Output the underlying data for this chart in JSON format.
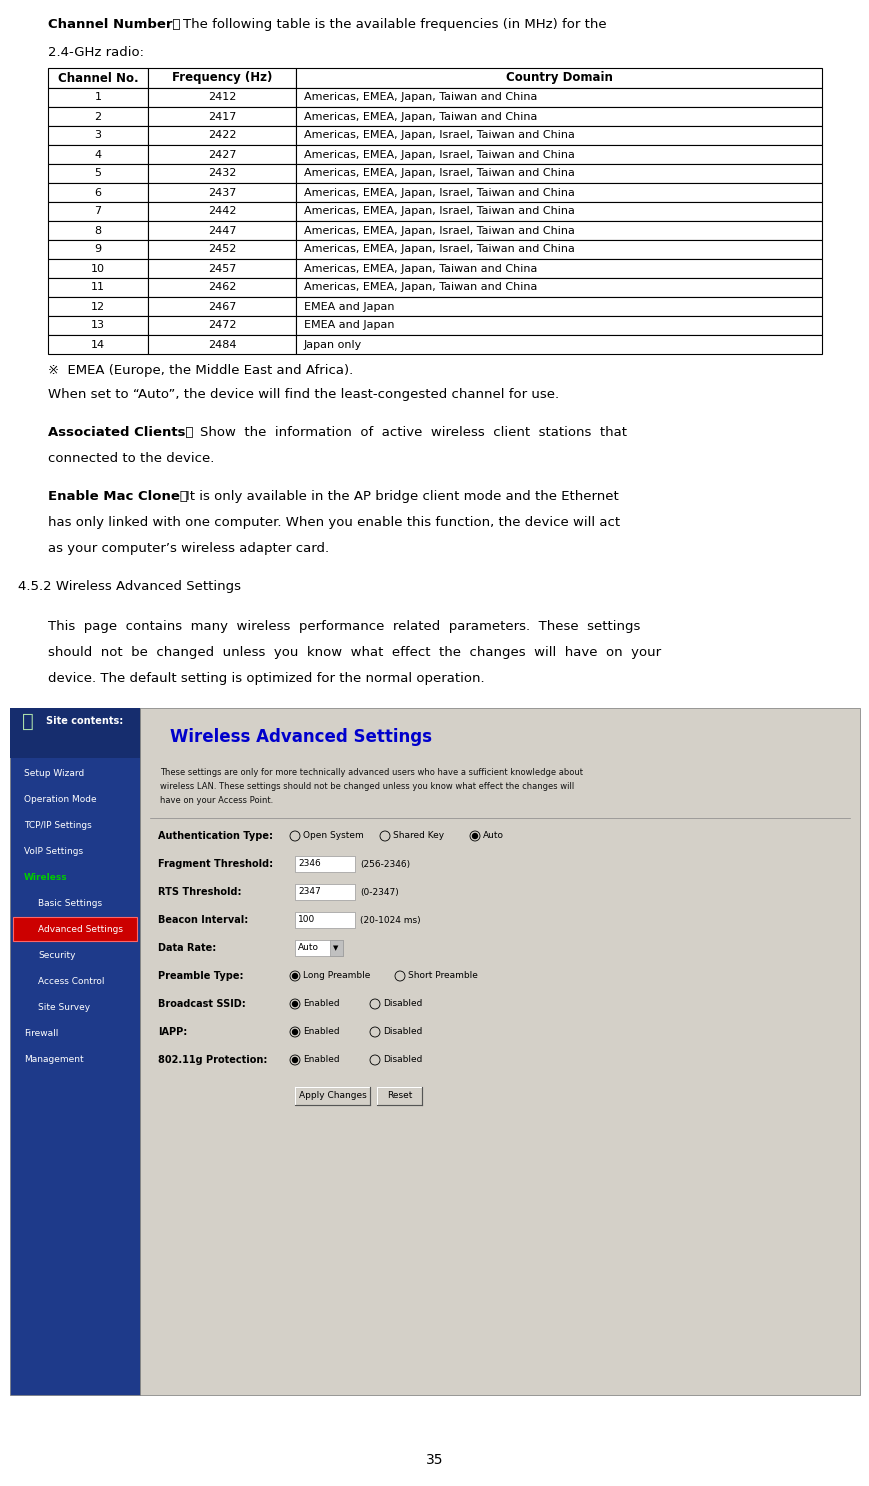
{
  "table_headers": [
    "Channel No.",
    "Frequency (Hz)",
    "Country Domain"
  ],
  "table_rows": [
    [
      "1",
      "2412",
      "Americas, EMEA, Japan, Taiwan and China"
    ],
    [
      "2",
      "2417",
      "Americas, EMEA, Japan, Taiwan and China"
    ],
    [
      "3",
      "2422",
      "Americas, EMEA, Japan, Israel, Taiwan and China"
    ],
    [
      "4",
      "2427",
      "Americas, EMEA, Japan, Israel, Taiwan and China"
    ],
    [
      "5",
      "2432",
      "Americas, EMEA, Japan, Israel, Taiwan and China"
    ],
    [
      "6",
      "2437",
      "Americas, EMEA, Japan, Israel, Taiwan and China"
    ],
    [
      "7",
      "2442",
      "Americas, EMEA, Japan, Israel, Taiwan and China"
    ],
    [
      "8",
      "2447",
      "Americas, EMEA, Japan, Israel, Taiwan and China"
    ],
    [
      "9",
      "2452",
      "Americas, EMEA, Japan, Israel, Taiwan and China"
    ],
    [
      "10",
      "2457",
      "Americas, EMEA, Japan, Taiwan and China"
    ],
    [
      "11",
      "2462",
      "Americas, EMEA, Japan, Taiwan and China"
    ],
    [
      "12",
      "2467",
      "EMEA and Japan"
    ],
    [
      "13",
      "2472",
      "EMEA and Japan"
    ],
    [
      "14",
      "2484",
      "Japan only"
    ]
  ],
  "note1": "※  EMEA (Europe, the Middle East and Africa).",
  "note2": "When set to “Auto”, the device will find the least-congested channel for use.",
  "section_heading": "4.5.2 Wireless Advanced Settings",
  "page_number": "35",
  "bg_color": "#ffffff",
  "sidebar_bg": "#1e3a8a",
  "main_content_bg": "#d4d0c8",
  "title_color_wlan": "#0000cc"
}
